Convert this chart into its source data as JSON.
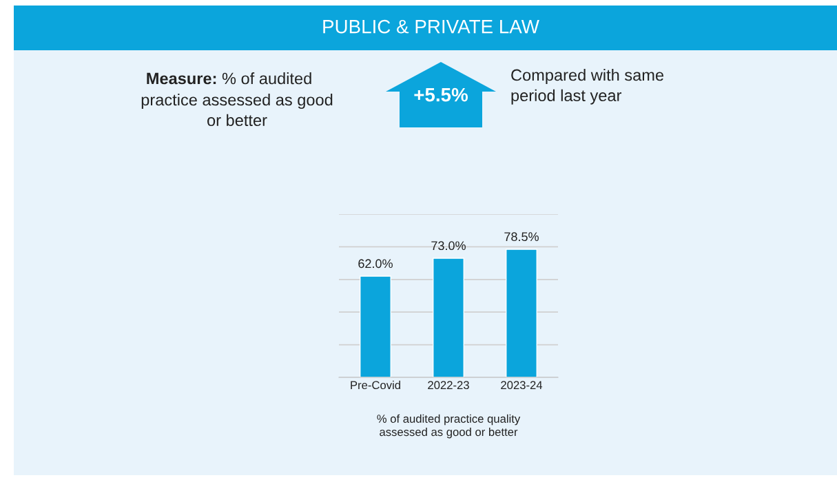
{
  "chart_data": {
    "type": "bar",
    "title": "PUBLIC & PRIVATE LAW",
    "categories": [
      "Pre-Covid",
      "2022-23",
      "2023-24"
    ],
    "values": [
      62.0,
      73.0,
      78.5
    ],
    "value_labels": [
      "62.0%",
      "73.0%",
      "78.5%"
    ],
    "color": "#0ba5dc",
    "xlabel": "% of audited practice quality\nassessed as good or better",
    "ylim": [
      0,
      100
    ],
    "yticks": [
      {
        "value": 0,
        "label": null
      },
      {
        "value": 20,
        "label": null
      },
      {
        "value": 40,
        "label": null
      },
      {
        "value": 60,
        "label": null
      },
      {
        "value": 80,
        "label": null
      },
      {
        "value": 100,
        "label": null
      }
    ],
    "tick_labels": "x",
    "grid": "y",
    "annotations": [
      "Measure:",
      "% of audited\npractice assessed as good\nor better",
      "+5.5%",
      "Compared with same\nperiod last year"
    ]
  }
}
